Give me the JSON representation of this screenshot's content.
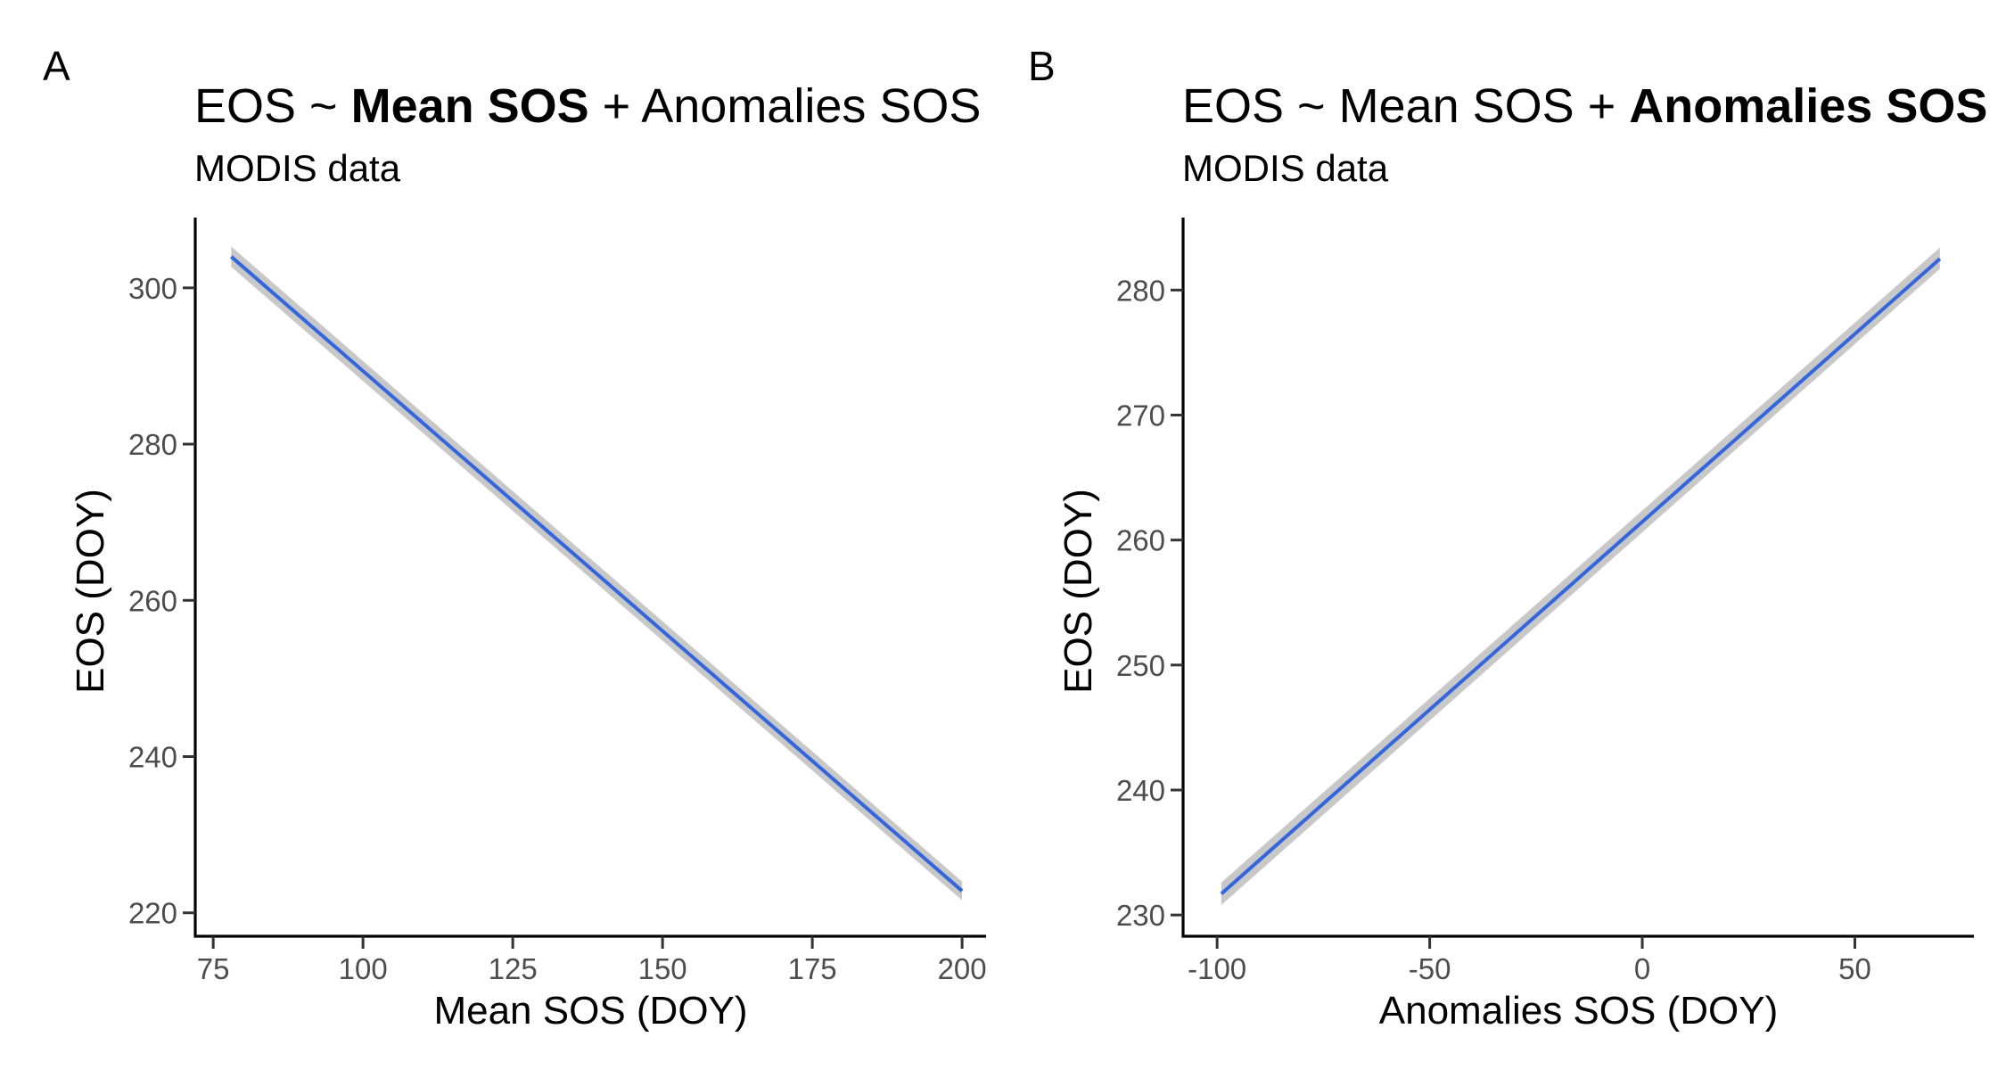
{
  "chart_data": [
    {
      "panel": "A",
      "type": "line",
      "title_parts": [
        {
          "text": "EOS ~ ",
          "bold": false
        },
        {
          "text": "Mean SOS",
          "bold": true
        },
        {
          "text": " + Anomalies SOS",
          "bold": false
        }
      ],
      "subtitle": "MODIS data",
      "xlabel": "Mean SOS (DOY)",
      "ylabel": "EOS (DOY)",
      "xlim": [
        72,
        204
      ],
      "ylim": [
        217,
        309
      ],
      "xticks": [
        75,
        100,
        125,
        150,
        175,
        200
      ],
      "xtick_labels": [
        "75",
        "100",
        "125",
        "150",
        "175",
        "200"
      ],
      "yticks": [
        220,
        240,
        260,
        280,
        300
      ],
      "ytick_labels": [
        "220",
        "240",
        "260",
        "280",
        "300"
      ],
      "grid": false,
      "x": [
        78,
        200
      ],
      "y": [
        304,
        222.8
      ],
      "ci_lower": [
        302.7,
        221.6
      ],
      "ci_upper": [
        305.3,
        224.0
      ],
      "line_color": "#3366dd",
      "ribbon_color": "#c8c8c8"
    },
    {
      "panel": "B",
      "type": "line",
      "title_parts": [
        {
          "text": "EOS ~ Mean SOS + ",
          "bold": false
        },
        {
          "text": "Anomalies SOS",
          "bold": true
        }
      ],
      "subtitle": "MODIS data",
      "xlabel": "Anomalies SOS (DOY)",
      "ylabel": "EOS (DOY)",
      "xlim": [
        -108,
        78
      ],
      "ylim": [
        228.3,
        285.8
      ],
      "xticks": [
        -100,
        -50,
        0,
        50
      ],
      "xtick_labels": [
        "-100",
        "-50",
        "0",
        "50"
      ],
      "yticks": [
        230,
        240,
        250,
        260,
        270,
        280
      ],
      "ytick_labels": [
        "230",
        "240",
        "250",
        "260",
        "270",
        "280"
      ],
      "grid": false,
      "x": [
        -99,
        70
      ],
      "y": [
        231.7,
        282.5
      ],
      "ci_lower": [
        230.8,
        281.7
      ],
      "ci_upper": [
        232.6,
        283.4
      ],
      "line_color": "#3366dd",
      "ribbon_color": "#c8c8c8"
    }
  ]
}
